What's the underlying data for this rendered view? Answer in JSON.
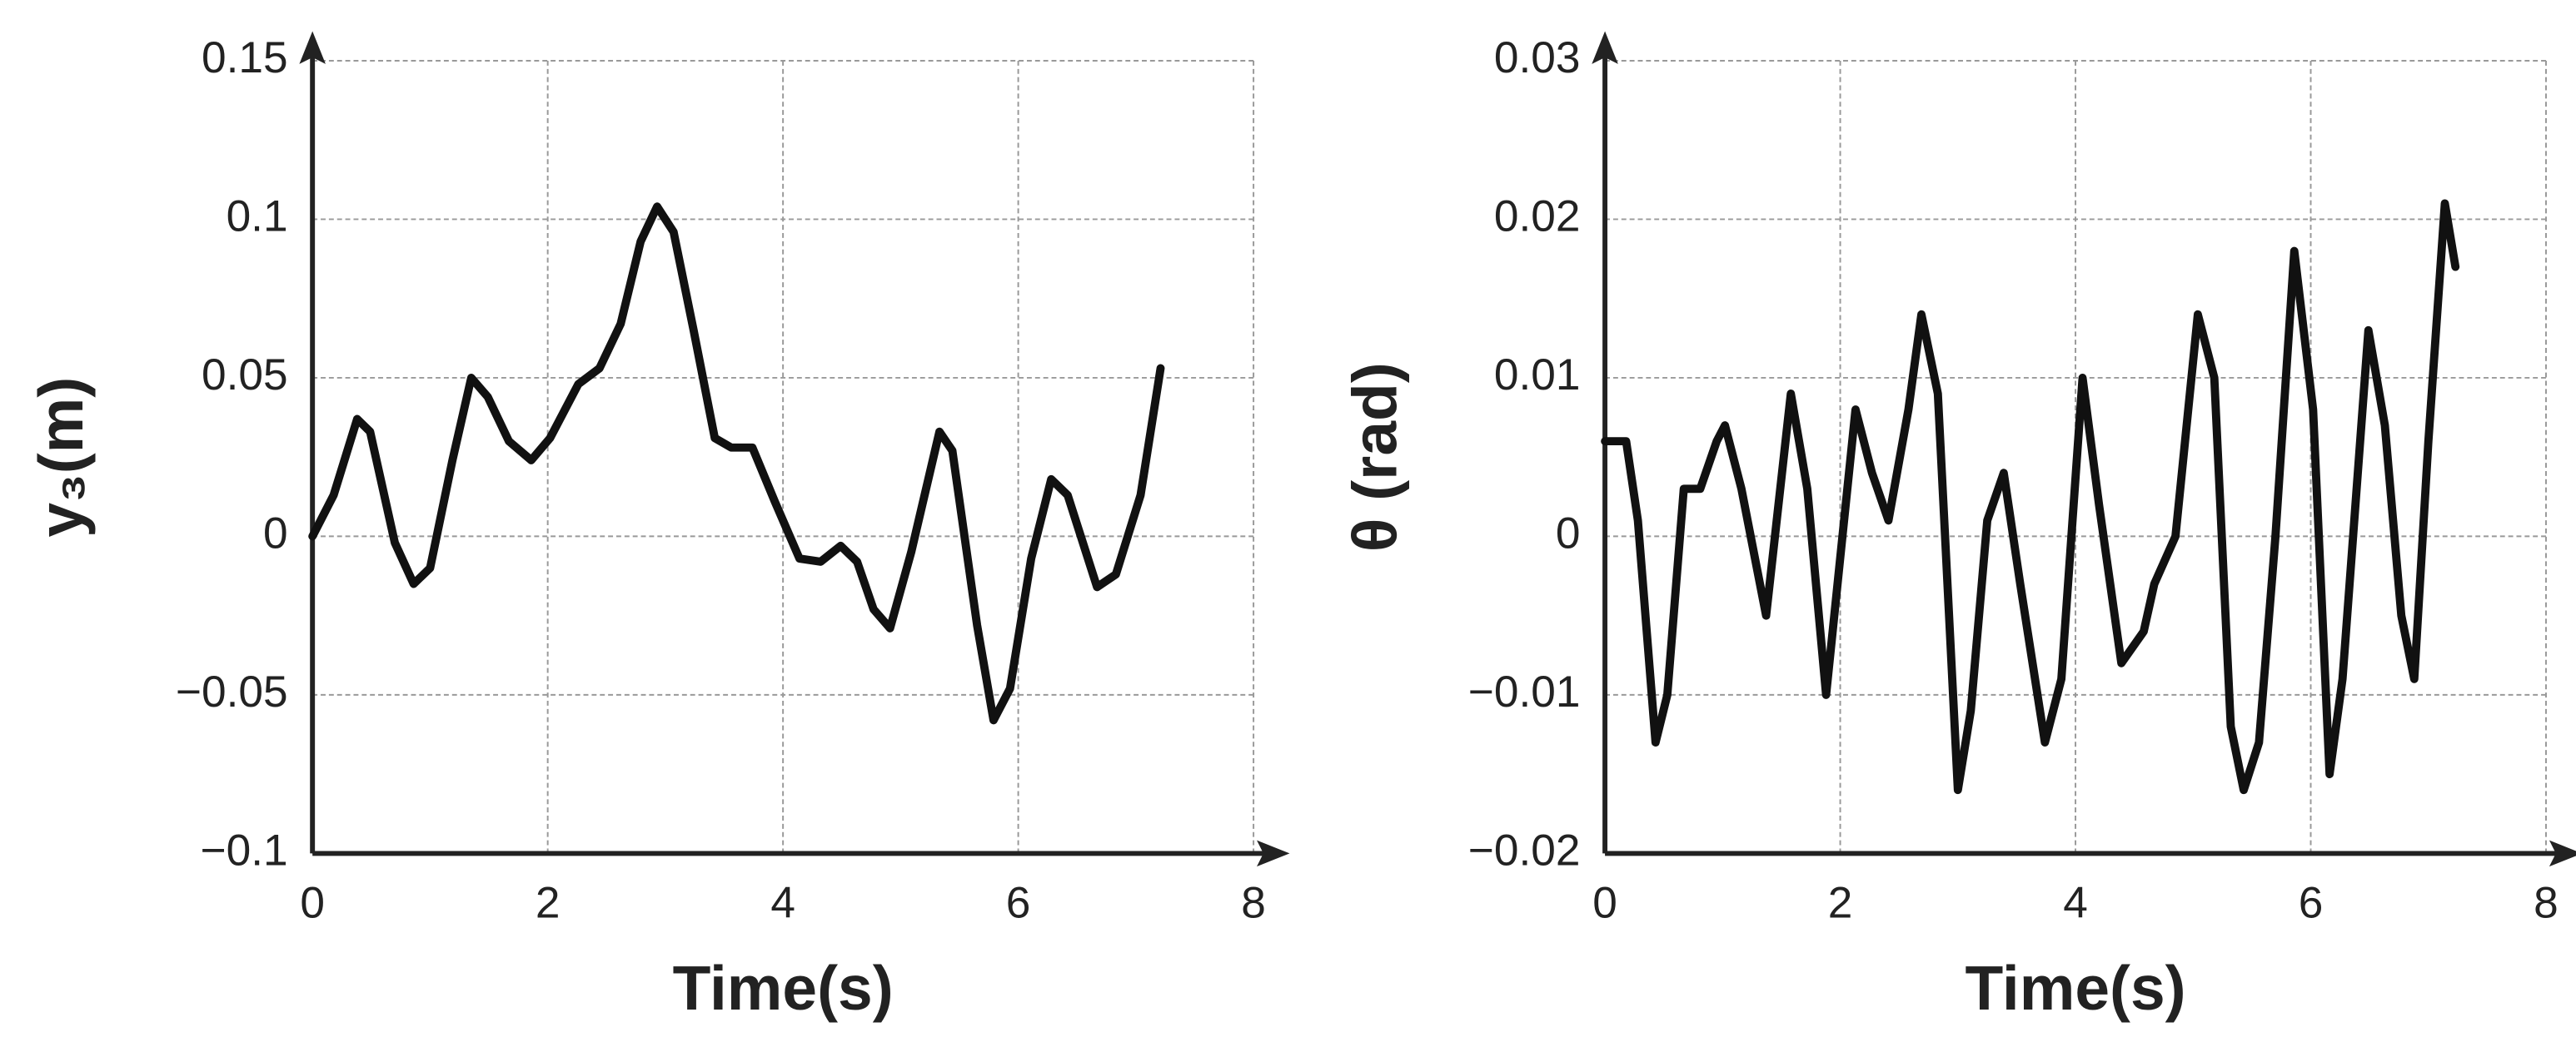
{
  "chart_data": [
    {
      "type": "line",
      "x_label": "Time(s)",
      "y_label": "y₃(m)",
      "color": "#111111",
      "grid": true,
      "xlim": [
        0,
        8
      ],
      "xticks": [
        0,
        2,
        4,
        6,
        8
      ],
      "ylim": [
        -0.1,
        0.15
      ],
      "yticks": [
        {
          "value": -0.1,
          "label": "−0.1"
        },
        {
          "value": -0.05,
          "label": "−0.05"
        },
        0,
        0.05,
        0.1,
        0.15
      ],
      "x": [
        0,
        0.18,
        0.38,
        0.49,
        0.7,
        0.86,
        1.0,
        1.19,
        1.35,
        1.49,
        1.67,
        1.86,
        2.02,
        2.26,
        2.44,
        2.62,
        2.79,
        2.93,
        3.07,
        3.24,
        3.42,
        3.56,
        3.74,
        3.93,
        4.14,
        4.32,
        4.49,
        4.63,
        4.77,
        4.91,
        5.09,
        5.33,
        5.44,
        5.65,
        5.79,
        5.93,
        6.11,
        6.28,
        6.42,
        6.67,
        6.83,
        7.04,
        7.21
      ],
      "values": [
        0,
        0.013,
        0.037,
        0.033,
        -0.002,
        -0.015,
        -0.01,
        0.024,
        0.05,
        0.044,
        0.03,
        0.024,
        0.031,
        0.048,
        0.053,
        0.067,
        0.093,
        0.104,
        0.096,
        0.065,
        0.031,
        0.028,
        0.028,
        0.011,
        -0.007,
        -0.008,
        -0.003,
        -0.008,
        -0.023,
        -0.029,
        -0.005,
        0.033,
        0.027,
        -0.028,
        -0.058,
        -0.048,
        -0.007,
        0.018,
        0.013,
        -0.016,
        -0.012,
        0.013,
        0.053
      ]
    },
    {
      "type": "line",
      "x_label": "Time(s)",
      "y_label": "θ (rad)",
      "color": "#111111",
      "grid": true,
      "xlim": [
        0,
        8
      ],
      "xticks": [
        0,
        2,
        4,
        6,
        8
      ],
      "ylim": [
        -0.02,
        0.03
      ],
      "yticks": [
        {
          "value": -0.02,
          "label": "−0.02"
        },
        {
          "value": -0.01,
          "label": "−0.01"
        },
        0,
        0.01,
        0.02,
        0.03
      ],
      "x": [
        0,
        0.18,
        0.28,
        0.43,
        0.53,
        0.67,
        0.81,
        0.95,
        1.02,
        1.16,
        1.37,
        1.58,
        1.72,
        1.88,
        2.13,
        2.27,
        2.41,
        2.58,
        2.69,
        2.83,
        3.0,
        3.11,
        3.25,
        3.39,
        3.53,
        3.74,
        3.88,
        4.06,
        4.2,
        4.39,
        4.58,
        4.67,
        4.85,
        5.04,
        5.18,
        5.32,
        5.43,
        5.56,
        5.7,
        5.86,
        6.02,
        6.16,
        6.27,
        6.49,
        6.63,
        6.77,
        6.88,
        7.0,
        7.14,
        7.23
      ],
      "values": [
        0.006,
        0.006,
        0.001,
        -0.013,
        -0.01,
        0.003,
        0.003,
        0.006,
        0.007,
        0.003,
        -0.005,
        0.009,
        0.003,
        -0.01,
        0.008,
        0.004,
        0.001,
        0.008,
        0.014,
        0.009,
        -0.016,
        -0.011,
        0.001,
        0.004,
        -0.003,
        -0.013,
        -0.009,
        0.01,
        0.002,
        -0.008,
        -0.006,
        -0.003,
        0.0,
        0.014,
        0.01,
        -0.012,
        -0.016,
        -0.013,
        0.0,
        0.018,
        0.008,
        -0.015,
        -0.009,
        0.013,
        0.007,
        -0.005,
        -0.009,
        0.006,
        0.021,
        0.017
      ]
    }
  ]
}
